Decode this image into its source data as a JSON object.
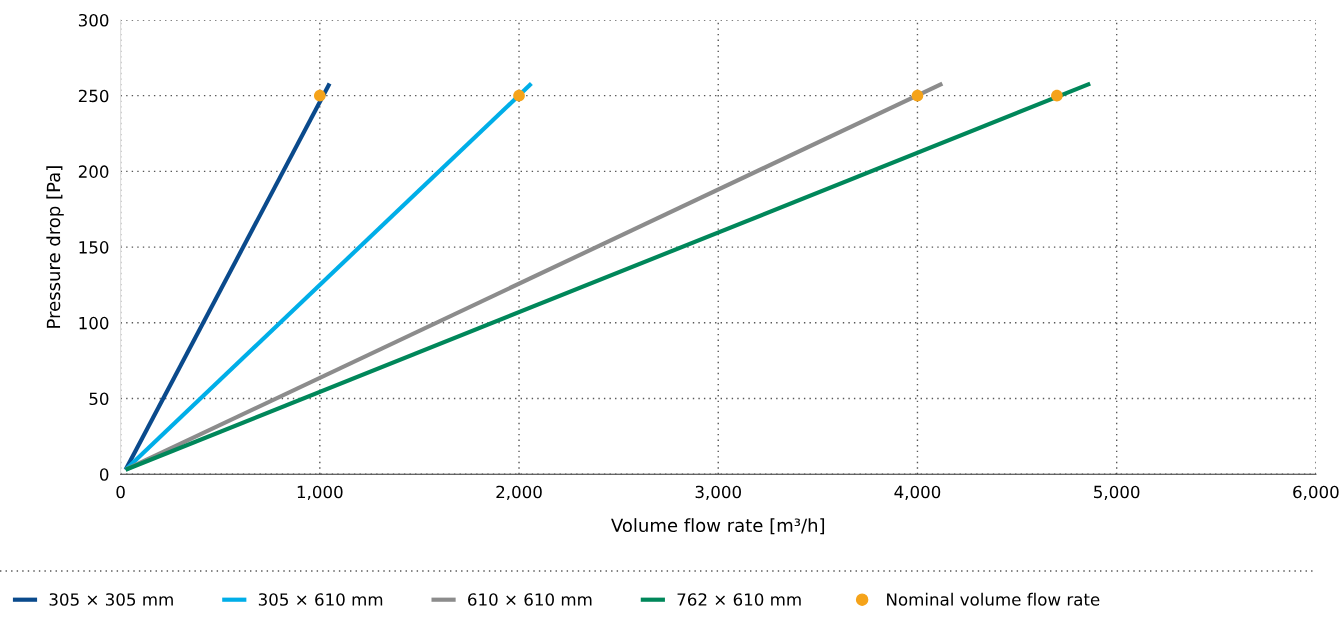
{
  "chart_data": {
    "type": "line",
    "xlabel": "Volume flow rate [m³/h]",
    "ylabel": "Pressure drop [Pa]",
    "xlim": [
      0,
      6000
    ],
    "xticks": [
      {
        "value": 0,
        "label": "0"
      },
      {
        "value": 1000,
        "label": "1,000"
      },
      {
        "value": 2000,
        "label": "2,000"
      },
      {
        "value": 3000,
        "label": "3,000"
      },
      {
        "value": 4000,
        "label": "4,000"
      },
      {
        "value": 5000,
        "label": "5,000"
      },
      {
        "value": 6000,
        "label": "6,000"
      }
    ],
    "ylim": [
      0,
      300
    ],
    "yticks": [
      0,
      50,
      100,
      150,
      200,
      250,
      300
    ],
    "grid": true,
    "legend": "bottom",
    "line_style": "solid",
    "series": [
      {
        "name": "305 × 305 mm",
        "color": "#0a4a8c",
        "x": [
          25,
          1049
        ],
        "values": [
          3,
          258
        ]
      },
      {
        "name": "305 × 610 mm",
        "color": "#00aee8",
        "x": [
          25,
          2062
        ],
        "values": [
          3,
          258
        ]
      },
      {
        "name": "610 × 610 mm",
        "color": "#8c8c8c",
        "x": [
          25,
          4125
        ],
        "values": [
          3,
          258
        ]
      },
      {
        "name": "762 × 610 mm",
        "color": "#00875a",
        "x": [
          25,
          4867
        ],
        "values": [
          3,
          258
        ]
      },
      {
        "name": "Nominal volume flow rate",
        "type": "scatter",
        "marker": "circle",
        "color": "#f5a31a",
        "x": [
          1000,
          2000,
          4000,
          4700
        ],
        "values": [
          250,
          250,
          250,
          250
        ]
      }
    ]
  }
}
